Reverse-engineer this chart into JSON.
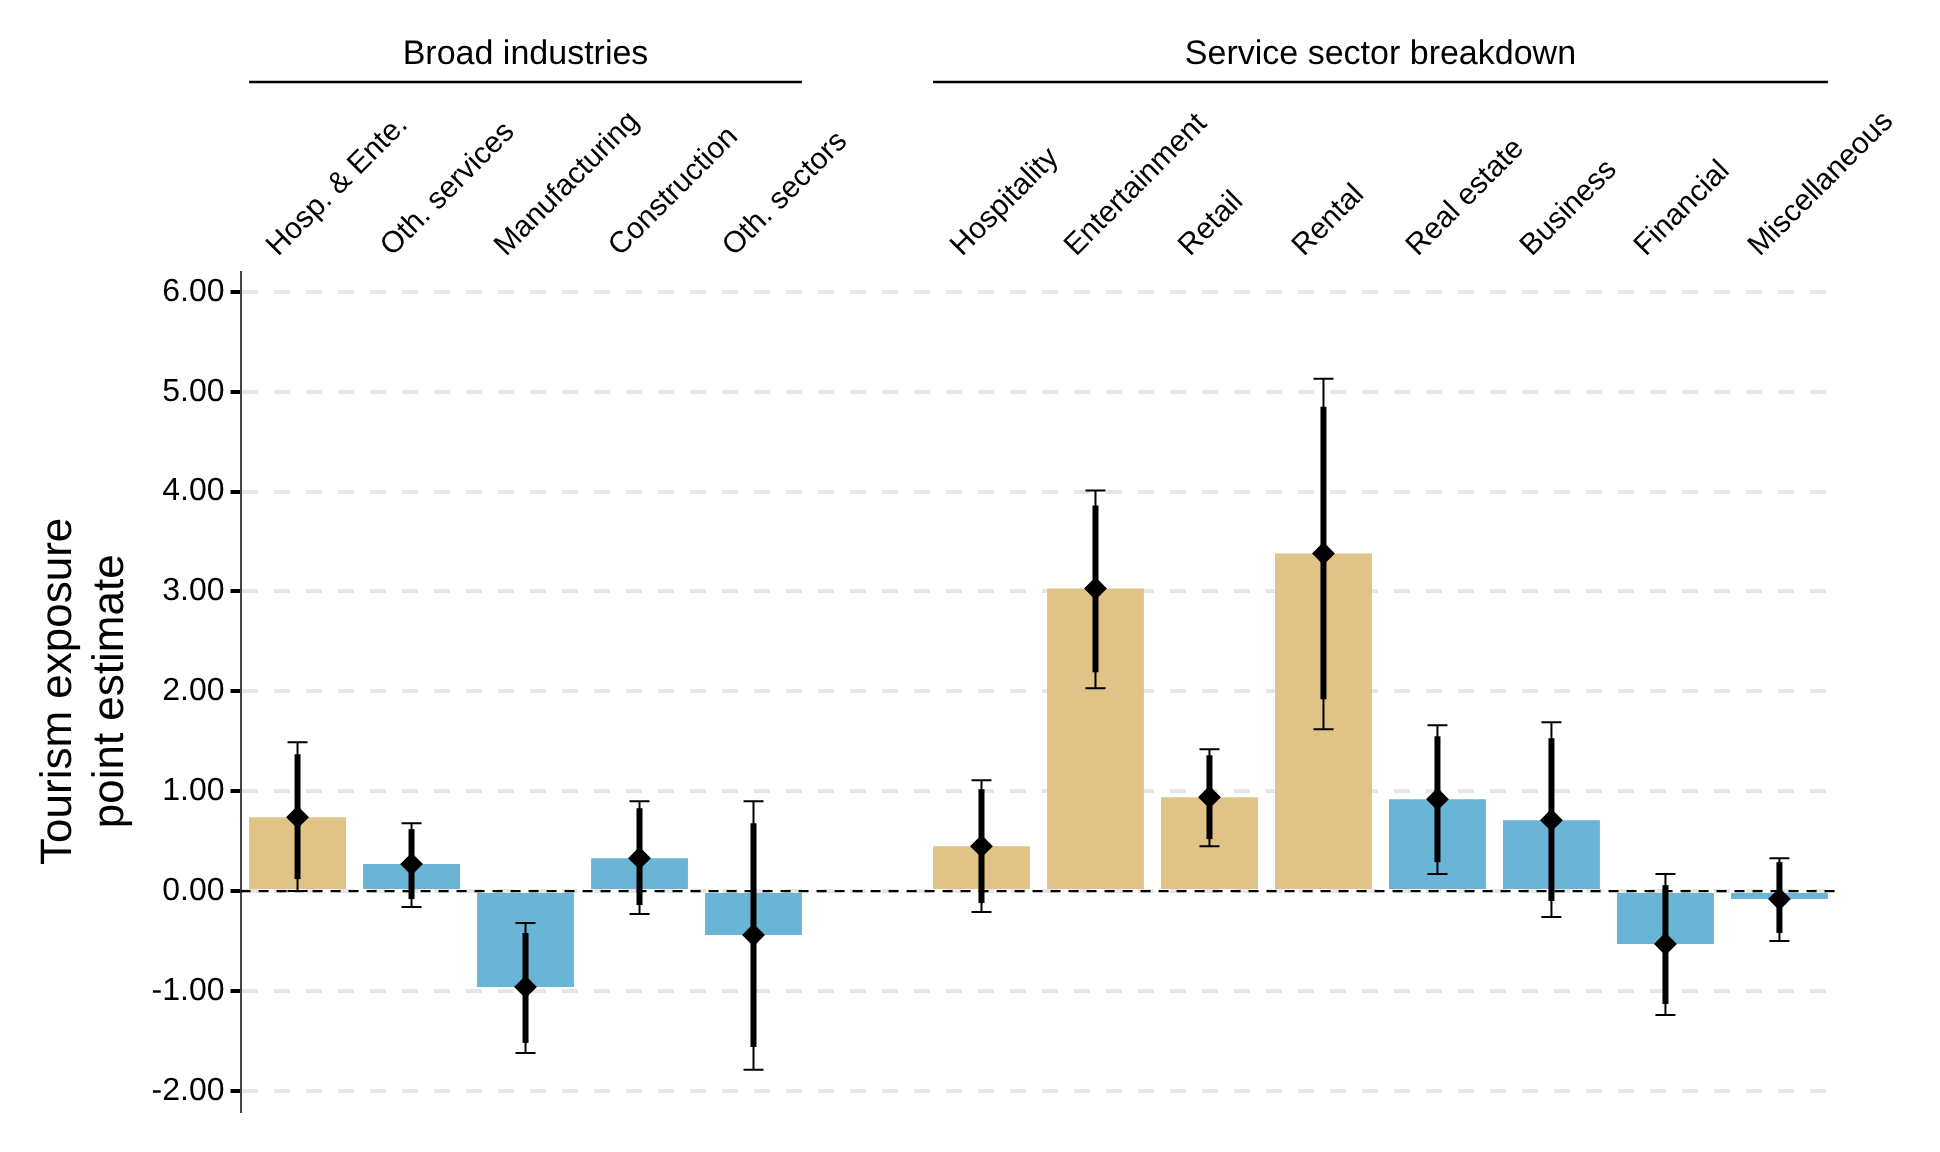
{
  "chart_data": {
    "type": "bar",
    "ylabel": "Tourism exposure point estimate",
    "annotations": [
      "Broad industries",
      "Service sector breakdown"
    ],
    "categories": [
      "Hosp. & Ente.",
      "Oth. services",
      "Manufacturing",
      "Construction",
      "Oth. sectors",
      null,
      "Hospitality",
      "Entertainment",
      "Retail",
      "Rental",
      "Real estate",
      "Business",
      "Financial",
      "Miscellaneous"
    ],
    "series": [
      {
        "colors": [
          "#e0c386",
          "#6ab5d6",
          "#6ab5d6",
          "#6ab5d6",
          "#6ab5d6",
          null,
          "#e0c386",
          "#e0c386",
          "#e0c386",
          "#e0c386",
          "#6ab5d6",
          "#6ab5d6",
          "#6ab5d6",
          "#6ab5d6"
        ],
        "values": [
          0.74,
          0.27,
          -0.96,
          0.33,
          -0.44,
          null,
          0.45,
          3.03,
          0.94,
          3.38,
          0.92,
          0.71,
          -0.53,
          -0.08
        ],
        "errors": [
          [
            0.0,
            1.49
          ],
          [
            -0.16,
            0.68
          ],
          [
            -1.62,
            -0.32
          ],
          [
            -0.23,
            0.9
          ],
          [
            -1.79,
            0.9
          ],
          null,
          [
            -0.21,
            1.11
          ],
          [
            2.03,
            4.01
          ],
          [
            0.45,
            1.42
          ],
          [
            1.62,
            5.13
          ],
          [
            0.17,
            1.66
          ],
          [
            -0.26,
            1.69
          ],
          [
            -1.24,
            0.17
          ],
          [
            -0.5,
            0.33
          ]
        ]
      },
      {
        "type": "scatter",
        "color": "#000000",
        "marker": "diamond",
        "values": [
          0.74,
          0.27,
          -0.96,
          0.33,
          -0.44,
          null,
          0.45,
          3.03,
          0.94,
          3.38,
          0.92,
          0.71,
          -0.53,
          -0.08
        ],
        "errors": [
          [
            0.12,
            1.37
          ],
          [
            -0.08,
            0.62
          ],
          [
            -1.52,
            -0.42
          ],
          [
            -0.14,
            0.83
          ],
          [
            -1.56,
            0.68
          ],
          null,
          [
            -0.12,
            1.02
          ],
          [
            2.19,
            3.86
          ],
          [
            0.52,
            1.36
          ],
          [
            1.92,
            4.85
          ],
          [
            0.29,
            1.55
          ],
          [
            -0.1,
            1.53
          ],
          [
            -1.13,
            0.06
          ],
          [
            -0.42,
            0.29
          ]
        ]
      }
    ],
    "ylim": [
      -2.2,
      6.2
    ],
    "yticks": [
      {
        "value": -2,
        "label": "-2.00"
      },
      {
        "value": -1,
        "label": "-1.00"
      },
      {
        "value": 0,
        "label": "0.00"
      },
      {
        "value": 1,
        "label": "1.00"
      },
      {
        "value": 2,
        "label": "2.00"
      },
      {
        "value": 3,
        "label": "3.00"
      },
      {
        "value": 4,
        "label": "4.00"
      },
      {
        "value": 5,
        "label": "5.00"
      },
      {
        "value": 6,
        "label": "6.00"
      }
    ],
    "grid": "y",
    "ref_lines": [
      {
        "axis": "y",
        "value": 0,
        "color": "#000000",
        "line_style": "dashed"
      }
    ],
    "legend": false
  }
}
